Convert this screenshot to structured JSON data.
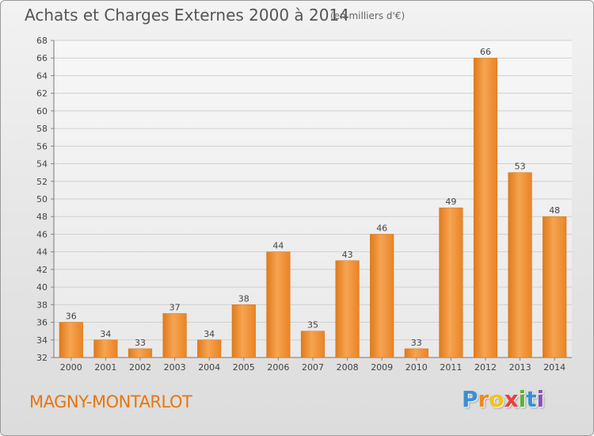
{
  "header": {
    "title": "Achats et Charges Externes 2000 à 2014",
    "unit": "(en milliers d'€)"
  },
  "commune": "MAGNY-MONTARLOT",
  "logo": {
    "letters": [
      "P",
      "r",
      "o",
      "x",
      "i",
      "t",
      "i"
    ],
    "colors": [
      "#3a8fd6",
      "#f08a1c",
      "#f4c21a",
      "#e8403a",
      "#5bb432",
      "#3a8fd6",
      "#8a4fc0"
    ]
  },
  "chart_data": {
    "type": "bar",
    "title": "Achats et Charges Externes 2000 à 2014",
    "xlabel": "",
    "ylabel": "",
    "categories": [
      "2000",
      "2001",
      "2002",
      "2003",
      "2004",
      "2005",
      "2006",
      "2007",
      "2008",
      "2009",
      "2010",
      "2011",
      "2012",
      "2013",
      "2014"
    ],
    "values": [
      36,
      34,
      33,
      37,
      34,
      38,
      44,
      35,
      43,
      46,
      33,
      49,
      66,
      53,
      48
    ],
    "ylim": [
      32,
      68
    ],
    "yticks": [
      32,
      34,
      36,
      38,
      40,
      42,
      44,
      46,
      48,
      50,
      52,
      54,
      56,
      58,
      60,
      62,
      64,
      66,
      68
    ],
    "grid": true,
    "bar_color": "#f08a26"
  }
}
